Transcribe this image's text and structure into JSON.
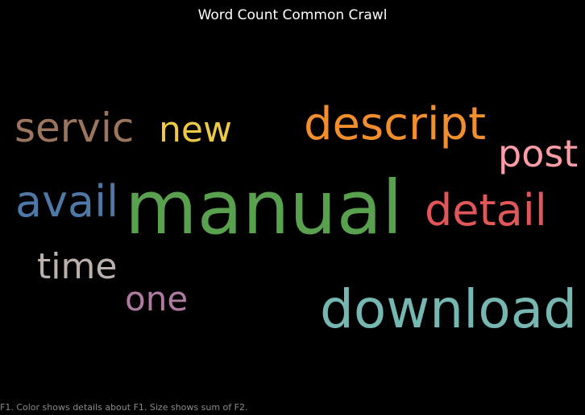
{
  "chart_data": {
    "type": "word-cloud",
    "title": "Word Count Common Crawl",
    "caption": "F1.  Color shows details about F1.  Size shows sum of F2.",
    "words": [
      {
        "text": "manual",
        "color": "#59a14f",
        "rank": 1
      },
      {
        "text": "download",
        "color": "#76b7b2",
        "rank": 2
      },
      {
        "text": "descript",
        "color": "#f28e2b",
        "rank": 3
      },
      {
        "text": "detail",
        "color": "#e15759",
        "rank": 4
      },
      {
        "text": "servic",
        "color": "#9c755f",
        "rank": 5
      },
      {
        "text": "avail",
        "color": "#4e79a7",
        "rank": 6
      },
      {
        "text": "post",
        "color": "#ff9da7",
        "rank": 7
      },
      {
        "text": "time",
        "color": "#bab0ac",
        "rank": 8
      },
      {
        "text": "new",
        "color": "#edc948",
        "rank": 9
      },
      {
        "text": "one",
        "color": "#b07aa1",
        "rank": 10
      }
    ]
  }
}
